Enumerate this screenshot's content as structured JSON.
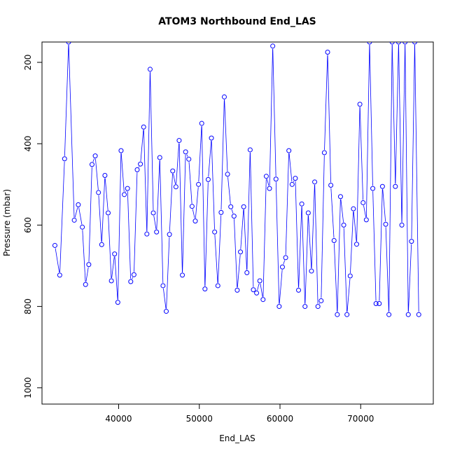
{
  "chart_data": {
    "type": "line",
    "title": "ATOM3 Northbound End_LAS",
    "xlabel": "End_LAS",
    "ylabel": "Pressure (mbar)",
    "xlim": [
      30500,
      79000
    ],
    "ylim": [
      1040,
      150
    ],
    "x_ticks": [
      40000,
      50000,
      60000,
      70000
    ],
    "y_ticks": [
      200,
      400,
      600,
      800,
      1000
    ],
    "x_tick_labels": [
      "40000",
      "50000",
      "60000",
      "70000"
    ],
    "y_tick_labels": [
      "200",
      "400",
      "600",
      "800",
      "1000"
    ],
    "grid": false,
    "legend": "none",
    "series_color": "#0000ff",
    "series": [
      {
        "marker": "open-circle",
        "x": [
          32100,
          32700,
          33300,
          33800,
          34500,
          35000,
          35500,
          35900,
          36300,
          36700,
          37100,
          37500,
          37900,
          38300,
          38700,
          39100,
          39500,
          39900,
          40300,
          40700,
          41100,
          41500,
          41900,
          42300,
          42700,
          43100,
          43500,
          43900,
          44300,
          44700,
          45100,
          45500,
          45900,
          46300,
          46700,
          47100,
          47500,
          47900,
          48300,
          48700,
          49100,
          49500,
          49900,
          50300,
          50700,
          51100,
          51500,
          51900,
          52300,
          52700,
          53100,
          53500,
          53900,
          54300,
          54700,
          55100,
          55500,
          55900,
          56300,
          56700,
          57100,
          57500,
          57900,
          58300,
          58700,
          59100,
          59500,
          59900,
          60300,
          60700,
          61100,
          61500,
          61900,
          62300,
          62700,
          63100,
          63500,
          63900,
          64300,
          64700,
          65100,
          65500,
          65900,
          66300,
          66700,
          67100,
          67500,
          67900,
          68300,
          68700,
          69100,
          69500,
          69900,
          70300,
          70700,
          71100,
          71500,
          71900,
          72300,
          72700,
          73100,
          73500,
          73900,
          74300,
          74700,
          75100,
          75500,
          75900,
          76300,
          76700,
          77200
        ],
        "y": [
          650,
          723,
          437,
          150,
          588,
          550,
          605,
          746,
          697,
          451,
          430,
          520,
          648,
          478,
          570,
          737,
          671,
          790,
          417,
          525,
          510,
          739,
          722,
          464,
          450,
          359,
          622,
          217,
          570,
          617,
          434,
          749,
          812,
          623,
          467,
          506,
          392,
          723,
          420,
          438,
          554,
          590,
          500,
          350,
          757,
          488,
          386,
          617,
          749,
          569,
          285,
          475,
          555,
          578,
          760,
          666,
          555,
          717,
          415,
          759,
          767,
          737,
          783,
          480,
          510,
          160,
          487,
          800,
          703,
          680,
          417,
          500,
          485,
          760,
          548,
          800,
          570,
          713,
          494,
          800,
          786,
          422,
          175,
          502,
          638,
          820,
          530,
          600,
          820,
          725,
          560,
          647,
          303,
          545,
          587,
          150,
          510,
          793,
          793,
          505,
          598,
          820,
          150,
          505,
          150,
          600,
          150,
          820,
          640,
          150,
          820
        ]
      }
    ]
  }
}
